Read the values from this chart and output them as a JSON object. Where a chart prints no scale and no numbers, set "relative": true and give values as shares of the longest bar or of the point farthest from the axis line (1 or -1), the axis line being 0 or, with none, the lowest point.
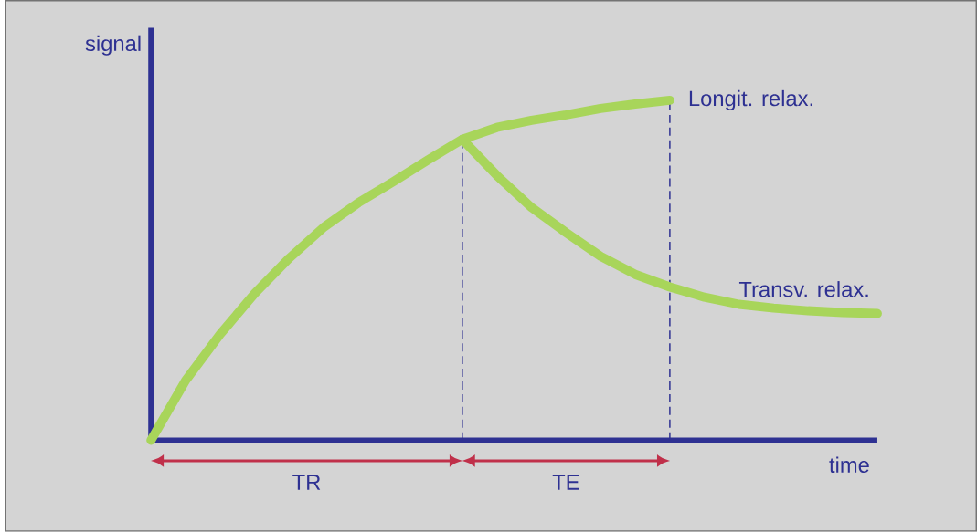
{
  "chart_data": {
    "type": "line",
    "relative": true,
    "xlabel": "time",
    "ylabel": "signal",
    "marker": "none",
    "line_style": "solid",
    "categories": [
      null,
      null,
      null,
      null,
      null,
      null,
      null,
      null,
      null,
      null,
      null,
      null,
      null,
      null,
      null,
      null,
      null,
      null,
      null,
      null,
      null,
      null
    ],
    "series": [
      {
        "name": "Longit. relax.",
        "color": "#a8d55a",
        "values": [
          0,
          0.176,
          0.312,
          0.432,
          0.536,
          0.627,
          0.699,
          0.76,
          0.824,
          0.885,
          0.92,
          0.941,
          0.957,
          0.976,
          0.989,
          1,
          null,
          null,
          null,
          null,
          null,
          null
        ]
      },
      {
        "name": "Transv. relax.",
        "color": "#a8d55a",
        "values": [
          null,
          null,
          null,
          null,
          null,
          null,
          null,
          null,
          null,
          0.885,
          0.779,
          0.685,
          0.611,
          0.541,
          0.488,
          0.451,
          0.421,
          0.4,
          0.389,
          0.381,
          0.376,
          0.373
        ]
      }
    ],
    "annotations": [
      "TR",
      "TE"
    ]
  }
}
